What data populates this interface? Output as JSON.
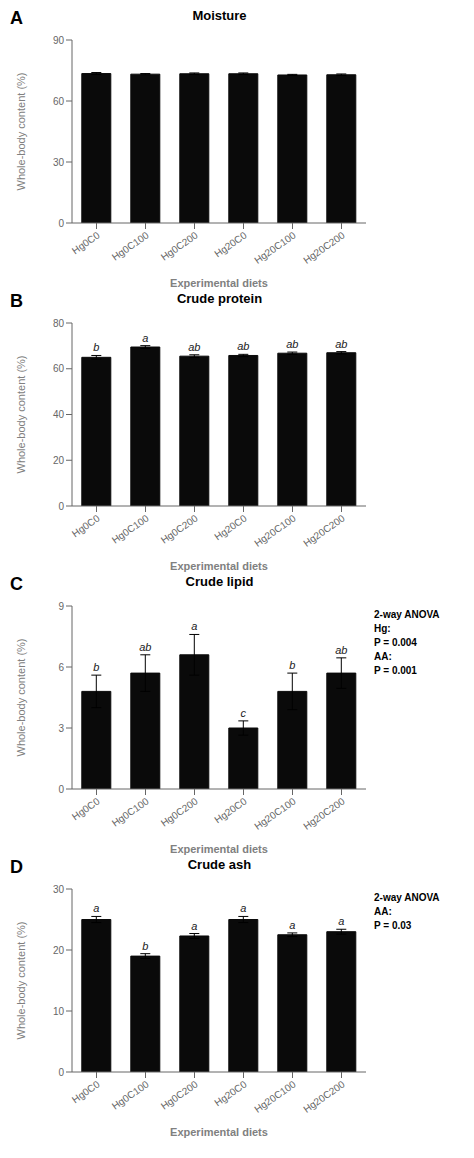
{
  "chart_data": [
    {
      "type": "bar",
      "panel_label": "A",
      "title": "Moisture",
      "categories": [
        "Hg0C0",
        "Hg0C100",
        "Hg0C200",
        "Hg20C0",
        "Hg20C100",
        "Hg20C200"
      ],
      "values": [
        73.5,
        73.2,
        73.4,
        73.4,
        72.8,
        72.9
      ],
      "errors": [
        0.5,
        0.3,
        0.4,
        0.4,
        0.3,
        0.4
      ],
      "color": "#0a0a0a",
      "ylim": [
        0,
        90
      ],
      "yticks": [
        0,
        30,
        60,
        90
      ],
      "ylabel": "Whole-body content (%)",
      "xlabel": "Experimental diets",
      "grid": false
    },
    {
      "type": "bar",
      "panel_label": "B",
      "title": "Crude protein",
      "categories": [
        "Hg0C0",
        "Hg0C100",
        "Hg0C200",
        "Hg20C0",
        "Hg20C100",
        "Hg20C200"
      ],
      "values": [
        65.0,
        69.5,
        65.5,
        65.8,
        66.8,
        67.0
      ],
      "errors": [
        0.8,
        0.6,
        0.6,
        0.5,
        0.5,
        0.5
      ],
      "bar_annotations": [
        "b",
        "a",
        "ab",
        "ab",
        "ab",
        "ab"
      ],
      "color": "#0a0a0a",
      "ylim": [
        0,
        80
      ],
      "yticks": [
        0,
        20,
        40,
        60,
        80
      ],
      "ylabel": "Whole-body content (%)",
      "xlabel": "Experimental diets",
      "grid": false
    },
    {
      "type": "bar",
      "panel_label": "C",
      "title": "Crude lipid",
      "categories": [
        "Hg0C0",
        "Hg0C100",
        "Hg0C200",
        "Hg20C0",
        "Hg20C100",
        "Hg20C200"
      ],
      "values": [
        4.8,
        5.7,
        6.6,
        3.0,
        4.8,
        5.7
      ],
      "errors": [
        0.8,
        0.9,
        1.0,
        0.35,
        0.9,
        0.75
      ],
      "bar_annotations": [
        "b",
        "ab",
        "a",
        "c",
        "b",
        "ab"
      ],
      "color": "#0a0a0a",
      "ylim": [
        0,
        9
      ],
      "yticks": [
        0,
        3,
        6,
        9
      ],
      "ylabel": "Whole-body content (%)",
      "xlabel": "Experimental diets",
      "annotation": "2-way ANOVA\nHg:\nP = 0.004\nAA:\nP = 0.001",
      "grid": false
    },
    {
      "type": "bar",
      "panel_label": "D",
      "title": "Crude ash",
      "categories": [
        "Hg0C0",
        "Hg0C100",
        "Hg0C200",
        "Hg20C0",
        "Hg20C100",
        "Hg20C200"
      ],
      "values": [
        25.0,
        19.0,
        22.3,
        25.0,
        22.5,
        23.0
      ],
      "errors": [
        0.5,
        0.4,
        0.4,
        0.5,
        0.3,
        0.4
      ],
      "bar_annotations": [
        "a",
        "b",
        "a",
        "a",
        "a",
        "a"
      ],
      "color": "#0a0a0a",
      "ylim": [
        0,
        30
      ],
      "yticks": [
        0,
        10,
        20,
        30
      ],
      "ylabel": "Whole-body content (%)",
      "xlabel": "Experimental diets",
      "annotation": "2-way ANOVA\nAA:\nP = 0.03",
      "grid": false
    }
  ]
}
